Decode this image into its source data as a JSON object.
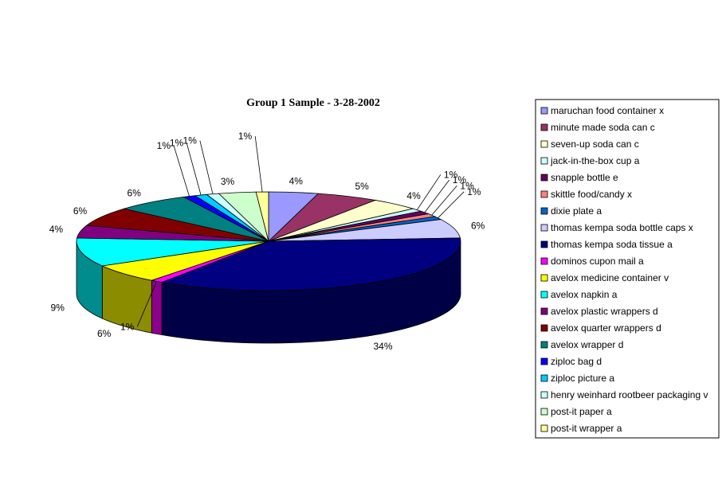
{
  "chart_data": {
    "type": "pie",
    "title": "Group 1 Sample - 3-28-2002",
    "legend_position": "right",
    "slices": [
      {
        "name": "maruchan food container x",
        "label": "4%",
        "value": 4,
        "color": "#9999FF"
      },
      {
        "name": "minute made soda can c",
        "label": "5%",
        "value": 5,
        "color": "#993366"
      },
      {
        "name": "seven-up soda can c",
        "label": "4%",
        "value": 4,
        "color": "#FFFFCC"
      },
      {
        "name": "jack-in-the-box cup a",
        "label": "1%",
        "value": 1,
        "color": "#CCFFFF"
      },
      {
        "name": "snapple bottle e",
        "label": "1%",
        "value": 1,
        "color": "#660066"
      },
      {
        "name": "skittle food/candy x",
        "label": "1%",
        "value": 1,
        "color": "#FF8080"
      },
      {
        "name": "dixie plate a",
        "label": "1%",
        "value": 1,
        "color": "#0066CC"
      },
      {
        "name": "thomas kempa soda bottle caps x",
        "label": "6%",
        "value": 6,
        "color": "#CCCCFF"
      },
      {
        "name": "thomas kempa soda tissue a",
        "label": "34%",
        "value": 34,
        "color": "#000080"
      },
      {
        "name": "dominos cupon mail a",
        "label": "1%",
        "value": 1,
        "color": "#FF00FF"
      },
      {
        "name": "avelox medicine container v",
        "label": "6%",
        "value": 6,
        "color": "#FFFF00"
      },
      {
        "name": "avelox napkin a",
        "label": "9%",
        "value": 9,
        "color": "#00FFFF"
      },
      {
        "name": "avelox plastic wrappers d",
        "label": "4%",
        "value": 4,
        "color": "#800080"
      },
      {
        "name": "avelox quarter wrappers d",
        "label": "6%",
        "value": 6,
        "color": "#800000"
      },
      {
        "name": "avelox wrapper d",
        "label": "6%",
        "value": 6,
        "color": "#008080"
      },
      {
        "name": "ziploc bag d",
        "label": "1%",
        "value": 1,
        "color": "#0000FF"
      },
      {
        "name": "ziploc picture a",
        "label": "1%",
        "value": 1,
        "color": "#00CCFF"
      },
      {
        "name": "henry weinhard rootbeer packaging v",
        "label": "1%",
        "value": 1,
        "color": "#CCFFFF"
      },
      {
        "name": "post-it paper a",
        "label": "3%",
        "value": 3,
        "color": "#CCFFCC"
      },
      {
        "name": "post-it wrapper a",
        "label": "1%",
        "value": 1,
        "color": "#FFFF99"
      }
    ]
  }
}
